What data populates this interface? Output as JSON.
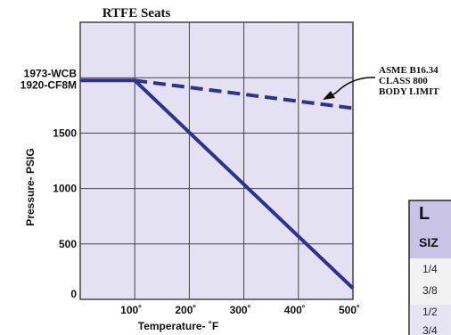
{
  "chart_data": {
    "type": "line",
    "title": "RTFE Seats",
    "xlabel": "Temperature- ˚F",
    "ylabel": "Pressure- PSIG",
    "xlim": [
      0,
      500
    ],
    "ylim": [
      0,
      2500
    ],
    "x_ticks": [
      100,
      200,
      300,
      400,
      500
    ],
    "x_tick_labels": [
      "100˚",
      "200˚",
      "300˚",
      "400˚",
      "500˚"
    ],
    "y_ticks": [
      0,
      500,
      1000,
      1500
    ],
    "y_tick_labels": [
      "0",
      "500",
      "1000",
      "1500"
    ],
    "y_extra_label": {
      "value": 1975,
      "lines": [
        "1973-WCB",
        "1920-CF8M"
      ]
    },
    "grid": true,
    "background": "#e3e1f2",
    "line_color": "#2e3192",
    "series": [
      {
        "style": "solid",
        "x": [
          0,
          100,
          500
        ],
        "y": [
          1975,
          1975,
          100
        ]
      },
      {
        "style": "dashed",
        "x": [
          100,
          500
        ],
        "y": [
          1975,
          1725
        ]
      }
    ],
    "annotations": [
      {
        "lines": [
          "ASME B16.34",
          "CLASS 800",
          "BODY LIMIT"
        ]
      }
    ]
  },
  "partial_table": {
    "header_letter": "L",
    "subheader": "SIZ",
    "header_bg": "#c9c3e6",
    "rows": [
      "1/4",
      "3/8",
      "1/2",
      "3/4"
    ]
  }
}
